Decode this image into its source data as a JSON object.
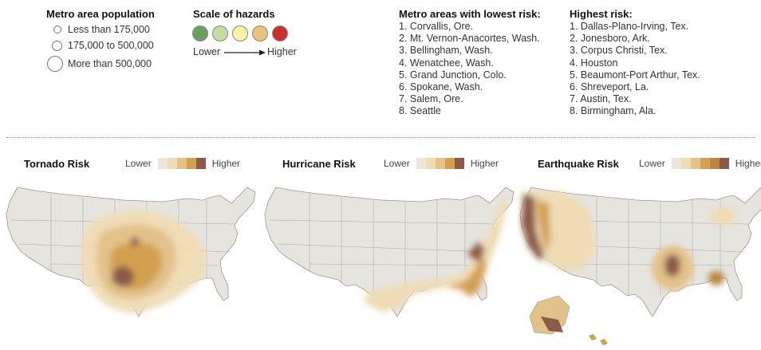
{
  "population": {
    "title": "Metro area population",
    "items": [
      {
        "label": "Less than 175,000"
      },
      {
        "label": "175,000 to 500,000"
      },
      {
        "label": "More than 500,000"
      }
    ]
  },
  "hazard_scale": {
    "title": "Scale of hazards",
    "colors": [
      "#6aa05a",
      "#c8dca2",
      "#f7f3a6",
      "#e7c57f",
      "#c9312e"
    ],
    "lower_label": "Lower",
    "higher_label": "Higher"
  },
  "lowest_risk": {
    "title": "Metro areas with lowest risk:",
    "items": [
      "1. Corvallis, Ore.",
      "2. Mt. Vernon-Anacortes, Wash.",
      "3. Bellingham, Wash.",
      "4. Wenatchee, Wash.",
      "5. Grand Junction, Colo.",
      "6. Spokane, Wash.",
      "7. Salem, Ore.",
      "8. Seattle"
    ]
  },
  "highest_risk": {
    "title": "Highest risk:",
    "items": [
      "1. Dallas-Plano-Irving, Tex.",
      "2. Jonesboro, Ark.",
      "3. Corpus Christi, Tex.",
      "4. Houston",
      "5. Beaumont-Port Arthur, Tex.",
      "6. Shreveport, La.",
      "7. Austin, Tex.",
      "8. Birmingham, Ala."
    ]
  },
  "maps": {
    "map_scale_colors": [
      "#ebe7dc",
      "#efdcb5",
      "#e3c28a",
      "#d3a04f",
      "#b9873f",
      "#8b5a48"
    ],
    "land_color": "#e6e4df",
    "border_color": "#9a9890",
    "tornado": {
      "title": "Tornado Risk",
      "lower_label": "Lower",
      "higher_label": "Higher"
    },
    "hurricane": {
      "title": "Hurricane Risk",
      "lower_label": "Lower",
      "higher_label": "Higher"
    },
    "earthquake": {
      "title": "Earthquake Risk",
      "lower_label": "Lower",
      "higher_label": "Higher"
    }
  }
}
